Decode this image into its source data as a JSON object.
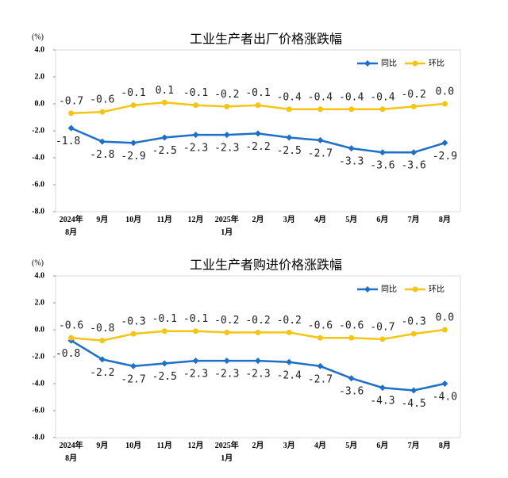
{
  "chart_data": [
    {
      "type": "line",
      "title": "工业生产者出厂价格涨跌幅",
      "y_label": "(%)",
      "categories": [
        "2024年8月",
        "9月",
        "10月",
        "11月",
        "12月",
        "2025年1月",
        "2月",
        "3月",
        "4月",
        "5月",
        "6月",
        "7月",
        "8月"
      ],
      "series": [
        {
          "name": "同比",
          "color": "#1e6fc8",
          "marker": "diamond",
          "values": [
            -1.8,
            -2.8,
            -2.9,
            -2.5,
            -2.3,
            -2.3,
            -2.2,
            -2.5,
            -2.7,
            -3.3,
            -3.6,
            -3.6,
            -2.9
          ],
          "value_labels": [
            "-1.8",
            "-2.8",
            "-2.9",
            "-2.5",
            "-2.3",
            "-2.3",
            "-2.2",
            "-2.5",
            "-2.7",
            "-3.3",
            "-3.6",
            "-3.6",
            "-2.9"
          ]
        },
        {
          "name": "环比",
          "color": "#f5c516",
          "marker": "circle",
          "values": [
            -0.7,
            -0.6,
            -0.1,
            0.1,
            -0.1,
            -0.2,
            -0.1,
            -0.4,
            -0.4,
            -0.4,
            -0.4,
            -0.2,
            0.0
          ],
          "value_labels": [
            "-0.7",
            "-0.6",
            "-0.1",
            "0.1",
            "-0.1",
            "-0.2",
            "-0.1",
            "-0.4",
            "-0.4",
            "-0.4",
            "-0.4",
            "-0.2",
            "0.0"
          ]
        }
      ],
      "ylim": [
        -8,
        4
      ],
      "yticks": [
        {
          "value": -8,
          "label": "-8.0"
        },
        {
          "value": -6,
          "label": "-6.0"
        },
        {
          "value": -4,
          "label": "-4.0"
        },
        {
          "value": -2,
          "label": "-2.0"
        },
        {
          "value": 0,
          "label": "0.0"
        },
        {
          "value": 2,
          "label": "2.0"
        },
        {
          "value": 4,
          "label": "4.0"
        }
      ],
      "legend": "upper right"
    },
    {
      "type": "line",
      "title": "工业生产者购进价格涨跌幅",
      "y_label": "(%)",
      "categories": [
        "2024年8月",
        "9月",
        "10月",
        "11月",
        "12月",
        "2025年1月",
        "2月",
        "3月",
        "4月",
        "5月",
        "6月",
        "7月",
        "8月"
      ],
      "series": [
        {
          "name": "同比",
          "color": "#1e6fc8",
          "marker": "diamond",
          "values": [
            -0.8,
            -2.2,
            -2.7,
            -2.5,
            -2.3,
            -2.3,
            -2.3,
            -2.4,
            -2.7,
            -3.6,
            -4.3,
            -4.5,
            -4.0
          ],
          "value_labels": [
            "-0.8",
            "-2.2",
            "-2.7",
            "-2.5",
            "-2.3",
            "-2.3",
            "-2.3",
            "-2.4",
            "-2.7",
            "-3.6",
            "-4.3",
            "-4.5",
            "-4.0"
          ]
        },
        {
          "name": "环比",
          "color": "#f5c516",
          "marker": "circle",
          "values": [
            -0.6,
            -0.8,
            -0.3,
            -0.1,
            -0.1,
            -0.2,
            -0.2,
            -0.2,
            -0.6,
            -0.6,
            -0.7,
            -0.3,
            0.0
          ],
          "value_labels": [
            "-0.6",
            "-0.8",
            "-0.3",
            "-0.1",
            "-0.1",
            "-0.2",
            "-0.2",
            "-0.2",
            "-0.6",
            "-0.6",
            "-0.7",
            "-0.3",
            "0.0"
          ]
        }
      ],
      "ylim": [
        -8,
        4
      ],
      "yticks": [
        {
          "value": -8,
          "label": "-8.0"
        },
        {
          "value": -6,
          "label": "-6.0"
        },
        {
          "value": -4,
          "label": "-4.0"
        },
        {
          "value": -2,
          "label": "-2.0"
        },
        {
          "value": 0,
          "label": "0.0"
        },
        {
          "value": 2,
          "label": "2.0"
        },
        {
          "value": 4,
          "label": "4.0"
        }
      ],
      "legend": "upper right"
    }
  ]
}
